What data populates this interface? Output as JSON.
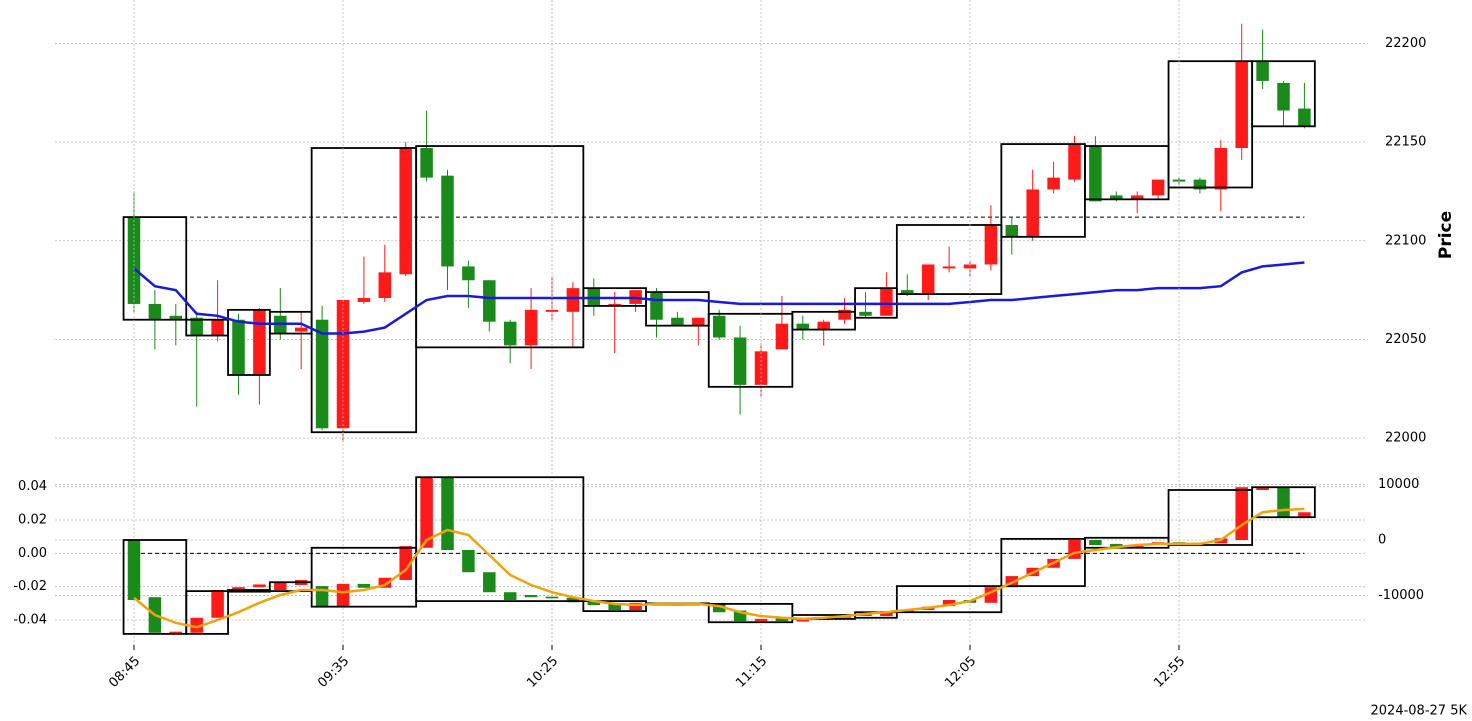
{
  "chart_data": [
    {
      "type": "candlestick",
      "ylabel": "Price",
      "ylim": [
        21994.5,
        22222
      ],
      "yticks": [
        22000,
        22050,
        22100,
        22150,
        22200
      ],
      "grid": true,
      "up_color": "#ff1a1a",
      "down_color": "#1a8a1a",
      "ref_line": 22112,
      "open": [
        22112,
        22068,
        22062,
        22061,
        22052,
        22060,
        22032,
        22062,
        22054,
        22060,
        22005,
        22069,
        22071,
        22083,
        22147,
        22133,
        22087,
        22080,
        22059,
        22047,
        22064,
        22064,
        22076,
        22067,
        22068,
        22074,
        22061,
        22057,
        22062,
        22051,
        22027,
        22045,
        22058,
        22055,
        22060,
        22064,
        22062,
        22075,
        22073,
        22086,
        22086,
        22088,
        22108,
        22102,
        22126,
        22131,
        22148,
        22123,
        22121,
        22123,
        22131,
        22131,
        22126,
        22147,
        22191,
        22180,
        22167
      ],
      "high": [
        22125,
        22075,
        22068,
        22064,
        22080,
        22063,
        22066,
        22076,
        22064,
        22067,
        22068,
        22092,
        22098,
        22150,
        22166,
        22136,
        22090,
        22080,
        22060,
        22076,
        22082,
        22079,
        22081,
        22074,
        22075,
        22076,
        22064,
        22061,
        22065,
        22057,
        22048,
        22072,
        22062,
        22060,
        22071,
        22074,
        22084,
        22083,
        22088,
        22097,
        22090,
        22118,
        22112,
        22136,
        22140,
        22153,
        22153,
        22125,
        22125,
        22131,
        22132,
        22132,
        22151,
        22210,
        22207,
        22181,
        22180
      ],
      "low": [
        22064,
        22045,
        22047,
        22016,
        22049,
        22022,
        22017,
        22050,
        22035,
        22004,
        21998,
        22068,
        22069,
        22082,
        22130,
        22075,
        22066,
        22054,
        22038,
        22035,
        22060,
        22046,
        22062,
        22043,
        22064,
        22051,
        22057,
        22047,
        22050,
        22012,
        22021,
        22045,
        22050,
        22047,
        22058,
        22061,
        22062,
        22072,
        22070,
        22084,
        22082,
        22085,
        22093,
        22100,
        22124,
        22130,
        22120,
        22120,
        22114,
        22121,
        22128,
        22124,
        22115,
        22141,
        22177,
        22158,
        22157
      ],
      "close": [
        22068,
        22060,
        22060,
        22052,
        22060,
        22032,
        22065,
        22053,
        22056,
        22005,
        22070,
        22071,
        22084,
        22147,
        22132,
        22087,
        22080,
        22059,
        22047,
        22065,
        22065,
        22076,
        22067,
        22068,
        22075,
        22060,
        22057,
        22061,
        22051,
        22027,
        22044,
        22058,
        22055,
        22059,
        22065,
        22062,
        22076,
        22073,
        22088,
        22087,
        22088,
        22108,
        22102,
        22126,
        22132,
        22149,
        22120,
        22121,
        22123,
        22131,
        22130,
        22126,
        22147,
        22191,
        22181,
        22166,
        22158
      ],
      "lines": [
        {
          "color": "#1a1adb",
          "values": [
            22086,
            22077,
            22075,
            22063,
            22062,
            22059,
            22058,
            22058,
            22058,
            22053,
            22053,
            22054,
            22056,
            22063,
            22070,
            22072,
            22072,
            22071,
            22071,
            22071,
            22071,
            22071,
            22071,
            22071,
            22071,
            22070,
            22070,
            22070,
            22069,
            22068,
            22068,
            22068,
            22068,
            22068,
            22068,
            22068,
            22068,
            22068,
            22068,
            22068,
            22069,
            22070,
            22070,
            22071,
            22072,
            22073,
            22074,
            22075,
            22075,
            22076,
            22076,
            22076,
            22077,
            22084,
            22087,
            22088,
            22089
          ]
        }
      ],
      "boxes": [
        {
          "start": 0,
          "end": 2,
          "top": 22112,
          "bottom": 22060
        },
        {
          "start": 3,
          "end": 4,
          "top": 22060,
          "bottom": 22052
        },
        {
          "start": 5,
          "end": 6,
          "top": 22065,
          "bottom": 22032
        },
        {
          "start": 7,
          "end": 8,
          "top": 22064,
          "bottom": 22053
        },
        {
          "start": 9,
          "end": 13,
          "top": 22147,
          "bottom": 22003
        },
        {
          "start": 14,
          "end": 21,
          "top": 22148,
          "bottom": 22046
        },
        {
          "start": 22,
          "end": 24,
          "top": 22076,
          "bottom": 22067
        },
        {
          "start": 25,
          "end": 27,
          "top": 22074,
          "bottom": 22057
        },
        {
          "start": 28,
          "end": 31,
          "top": 22063,
          "bottom": 22026
        },
        {
          "start": 32,
          "end": 34,
          "top": 22064,
          "bottom": 22055
        },
        {
          "start": 35,
          "end": 36,
          "top": 22076,
          "bottom": 22061
        },
        {
          "start": 37,
          "end": 41,
          "top": 22108,
          "bottom": 22073
        },
        {
          "start": 42,
          "end": 45,
          "top": 22149,
          "bottom": 22102
        },
        {
          "start": 46,
          "end": 49,
          "top": 22148,
          "bottom": 22121
        },
        {
          "start": 50,
          "end": 53,
          "top": 22191,
          "bottom": 22127
        },
        {
          "start": 54,
          "end": 56,
          "top": 22191,
          "bottom": 22158
        }
      ]
    },
    {
      "type": "candlestick",
      "caption": "2024-08-27 5K",
      "grid": true,
      "up_color": "#ff1a1a",
      "down_color": "#1a8a1a",
      "categories": [
        "08:45",
        null,
        null,
        null,
        null,
        null,
        null,
        null,
        null,
        null,
        "09:35",
        null,
        null,
        null,
        null,
        null,
        null,
        null,
        null,
        null,
        "10:25",
        null,
        null,
        null,
        null,
        null,
        null,
        null,
        null,
        null,
        "11:15",
        null,
        null,
        null,
        null,
        null,
        null,
        null,
        null,
        null,
        "12:05",
        null,
        null,
        null,
        null,
        null,
        null,
        null,
        null,
        null,
        "12:55",
        null,
        null,
        null,
        null,
        null,
        null
      ],
      "ylim": [
        -0.055,
        0.059
      ],
      "yticks": [
        -0.04,
        -0.02,
        {
          "value": 0,
          "label": "0.00"
        },
        0.02,
        0.04
      ],
      "ref_line": 0,
      "y2lim": [
        -18900,
        15300
      ],
      "y2ticks": [
        -10000,
        0,
        10000
      ],
      "open": [
        0,
        -10300,
        -16700,
        -16700,
        -14000,
        -9000,
        -8500,
        -9000,
        -8100,
        -8300,
        -11900,
        -7900,
        -8600,
        -7200,
        -1400,
        11300,
        -1800,
        -5800,
        -9400,
        -9900,
        -10200,
        -10400,
        -11000,
        -11500,
        -12600,
        -11300,
        -11500,
        -11600,
        -11400,
        -12700,
        -14600,
        -14000,
        -14600,
        -14400,
        -14000,
        -13600,
        -13700,
        -12800,
        -12600,
        -11900,
        -10800,
        -11300,
        -8500,
        -6500,
        -5000,
        -3400,
        0,
        -700,
        -1300,
        -900,
        -400,
        -500,
        -600,
        0,
        9000,
        9500,
        4100
      ],
      "close": [
        -10800,
        -16700,
        -16500,
        -14000,
        -9000,
        -8500,
        -8000,
        -7600,
        -7200,
        -11900,
        -7900,
        -8600,
        -6800,
        -1100,
        11300,
        -1800,
        -5800,
        -9400,
        -10800,
        -10300,
        -10500,
        -11200,
        -11700,
        -12600,
        -11300,
        -11500,
        -11600,
        -11400,
        -13000,
        -14600,
        -14200,
        -14600,
        -14400,
        -14000,
        -13600,
        -13400,
        -12800,
        -12600,
        -12000,
        -10800,
        -11300,
        -8500,
        -6500,
        -5000,
        -3400,
        0,
        -900,
        -1300,
        -1000,
        -400,
        -500,
        -600,
        300,
        9500,
        9500,
        4000,
        5000
      ],
      "candle_axis": "y2",
      "lines": [
        {
          "color": "#f0a30a",
          "axis": "y2",
          "values": [
            -10400,
            -13500,
            -14900,
            -15700,
            -14400,
            -13000,
            -11300,
            -9900,
            -9000,
            -9000,
            -9400,
            -9000,
            -8100,
            -5400,
            0,
            1800,
            900,
            -2700,
            -6300,
            -8100,
            -9400,
            -10300,
            -11000,
            -11500,
            -11700,
            -11500,
            -11500,
            -11500,
            -11900,
            -13000,
            -13700,
            -14000,
            -14200,
            -14000,
            -13700,
            -13300,
            -13000,
            -12600,
            -12200,
            -11700,
            -11000,
            -9400,
            -7700,
            -5900,
            -4100,
            -2300,
            -1800,
            -1300,
            -900,
            -700,
            -700,
            -700,
            0,
            2700,
            5000,
            5400,
            5600
          ]
        }
      ],
      "boxes": [
        {
          "start": 0,
          "end": 2,
          "top": 0,
          "bottom": -16900
        },
        {
          "start": 3,
          "end": 4,
          "top": -9200,
          "bottom": -16900
        },
        {
          "start": 5,
          "end": 6,
          "top": -9000,
          "bottom": -9300
        },
        {
          "start": 7,
          "end": 8,
          "top": -7600,
          "bottom": -9200
        },
        {
          "start": 9,
          "end": 13,
          "top": -1400,
          "bottom": -12000
        },
        {
          "start": 14,
          "end": 21,
          "top": 11300,
          "bottom": -11000
        },
        {
          "start": 22,
          "end": 24,
          "top": -11000,
          "bottom": -12800
        },
        {
          "start": 25,
          "end": 27,
          "top": -11400,
          "bottom": -11600
        },
        {
          "start": 28,
          "end": 31,
          "top": -11500,
          "bottom": -14800
        },
        {
          "start": 32,
          "end": 34,
          "top": -13500,
          "bottom": -14200
        },
        {
          "start": 35,
          "end": 36,
          "top": -13000,
          "bottom": -14000
        },
        {
          "start": 37,
          "end": 41,
          "top": -8300,
          "bottom": -13000
        },
        {
          "start": 42,
          "end": 45,
          "top": 200,
          "bottom": -8300
        },
        {
          "start": 46,
          "end": 49,
          "top": 400,
          "bottom": -1400
        },
        {
          "start": 50,
          "end": 53,
          "top": 9000,
          "bottom": -900
        },
        {
          "start": 54,
          "end": 56,
          "top": 9500,
          "bottom": 4100
        }
      ]
    }
  ]
}
